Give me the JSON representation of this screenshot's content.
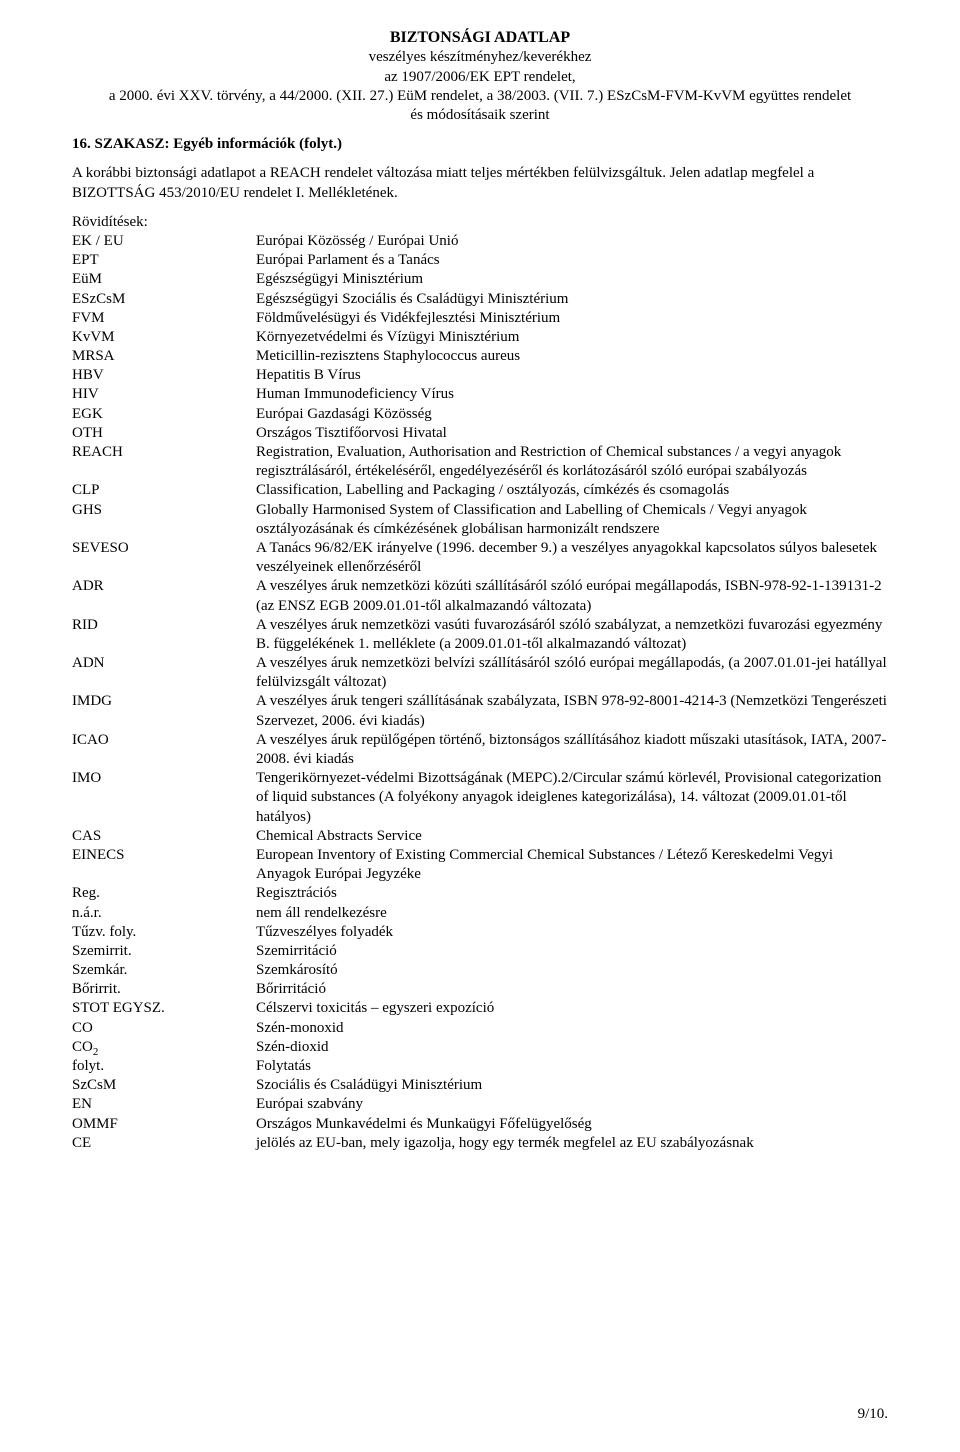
{
  "header": {
    "title": "BIZTONSÁGI ADATLAP",
    "line2": "veszélyes készítményhez/keverékhez",
    "line3": "az 1907/2006/EK EPT rendelet,",
    "line4": "a 2000. évi XXV. törvény, a 44/2000. (XII. 27.) EüM rendelet, a 38/2003. (VII. 7.) ESzCsM-FVM-KvVM együttes rendelet",
    "line5": "és módosításaik szerint"
  },
  "section": {
    "heading": "16. SZAKASZ: Egyéb információk (folyt.)"
  },
  "intro": "A korábbi biztonsági adatlapot a REACH rendelet változása miatt teljes mértékben felülvizsgáltuk. Jelen adatlap megfelel a BIZOTTSÁG 453/2010/EU rendelet I. Mellékletének.",
  "abbrev_label": "Rövidítések:",
  "abbrev": [
    {
      "k": "EK / EU",
      "v": "Európai Közösség / Európai Unió"
    },
    {
      "k": "EPT",
      "v": "Európai Parlament és a Tanács"
    },
    {
      "k": "EüM",
      "v": "Egészségügyi Minisztérium"
    },
    {
      "k": "ESzCsM",
      "v": "Egészségügyi Szociális és Családügyi Minisztérium"
    },
    {
      "k": "FVM",
      "v": "Földművelésügyi és Vidékfejlesztési Minisztérium"
    },
    {
      "k": "KvVM",
      "v": "Környezetvédelmi és Vízügyi Minisztérium"
    },
    {
      "k": "MRSA",
      "v": "Meticillin-rezisztens Staphylococcus aureus"
    },
    {
      "k": "HBV",
      "v": "Hepatitis B Vírus"
    },
    {
      "k": "HIV",
      "v": "Human Immunodeficiency Vírus"
    },
    {
      "k": "EGK",
      "v": "Európai Gazdasági Közösség"
    },
    {
      "k": "OTH",
      "v": "Országos Tisztifőorvosi Hivatal"
    },
    {
      "k": "REACH",
      "v": "Registration, Evaluation, Authorisation and Restriction of Chemical substances / a vegyi anyagok regisztrálásáról, értékeléséről, engedélyezéséről és korlátozásáról szóló európai szabályozás"
    },
    {
      "k": "CLP",
      "v": "Classification, Labelling and Packaging / osztályozás, címkézés és csomagolás"
    },
    {
      "k": "GHS",
      "v": "Globally Harmonised System of Classification and Labelling of Chemicals / Vegyi anyagok osztályozásának és címkézésének globálisan harmonizált rendszere"
    },
    {
      "k": "SEVESO",
      "v": "A Tanács 96/82/EK irányelve (1996. december 9.) a veszélyes anyagokkal kapcsolatos súlyos balesetek veszélyeinek ellenőrzéséről"
    },
    {
      "k": "ADR",
      "v": "A veszélyes áruk nemzetközi közúti szállításáról szóló európai megállapodás, ISBN-978-92-1-139131-2 (az ENSZ EGB 2009.01.01-től alkalmazandó változata)"
    },
    {
      "k": "RID",
      "v": "A veszélyes áruk nemzetközi vasúti fuvarozásáról szóló szabályzat, a nemzetközi fuvarozási egyezmény B. függelékének 1. melléklete (a 2009.01.01-től alkalmazandó változat)"
    },
    {
      "k": "ADN",
      "v": "A veszélyes áruk nemzetközi belvízi szállításáról szóló európai megállapodás, (a 2007.01.01-jei hatállyal felülvizsgált változat)"
    },
    {
      "k": "IMDG",
      "v": "A veszélyes áruk tengeri szállításának szabályzata, ISBN 978-92-8001-4214-3 (Nemzetközi Tengerészeti Szervezet, 2006. évi kiadás)"
    },
    {
      "k": "ICAO",
      "v": "A veszélyes áruk repülőgépen történő, biztonságos szállításához kiadott műszaki utasítások, IATA, 2007-2008. évi kiadás"
    },
    {
      "k": "IMO",
      "v": "Tengerikörnyezet-védelmi Bizottságának (MEPC).2/Circular számú körlevél, Provisional categorization of liquid substances (A folyékony anyagok ideiglenes kategorizálása), 14. változat (2009.01.01-től hatályos)"
    },
    {
      "k": "CAS",
      "v": "Chemical Abstracts Service"
    },
    {
      "k": "EINECS",
      "v": "European Inventory of Existing Commercial Chemical Substances / Létező Kereskedelmi Vegyi Anyagok Európai Jegyzéke"
    },
    {
      "k": "Reg.",
      "v": "Regisztrációs"
    },
    {
      "k": "n.á.r.",
      "v": "nem áll rendelkezésre"
    },
    {
      "k": "Tűzv. foly.",
      "v": "Tűzveszélyes folyadék"
    },
    {
      "k": "Szemirrit.",
      "v": "Szemirritáció"
    },
    {
      "k": "Szemkár.",
      "v": "Szemkárosító"
    },
    {
      "k": "Bőrirrit.",
      "v": "Bőrirritáció"
    },
    {
      "k": "STOT EGYSZ.",
      "v": "Célszervi toxicitás – egyszeri expozíció"
    },
    {
      "k": "CO",
      "v": "Szén-monoxid"
    },
    {
      "k": "CO2",
      "k_html": "CO<sub>2</sub>",
      "v": "Szén-dioxid"
    },
    {
      "k": "folyt.",
      "v": "Folytatás"
    },
    {
      "k": "SzCsM",
      "v": "Szociális és Családügyi Minisztérium"
    },
    {
      "k": "EN",
      "v": "Európai szabvány"
    },
    {
      "k": "OMMF",
      "v": "Országos Munkavédelmi és Munkaügyi Főfelügyelőség"
    },
    {
      "k": "CE",
      "v": "jelölés az EU-ban, mely igazolja, hogy egy termék megfelel az EU szabályozásnak"
    }
  ],
  "page_number": "9/10."
}
